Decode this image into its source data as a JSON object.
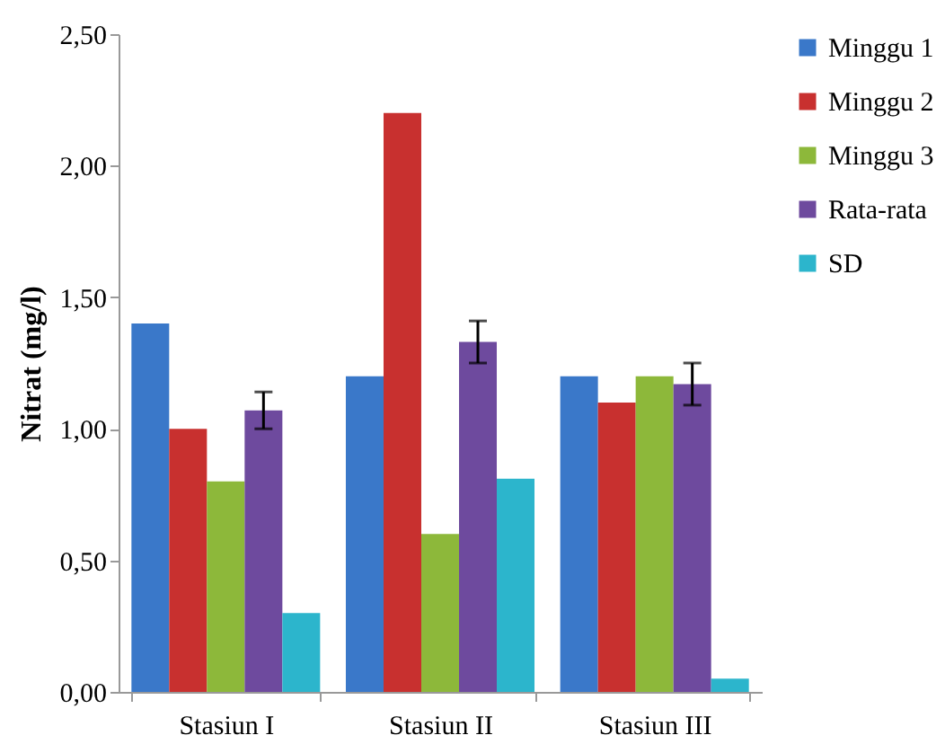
{
  "chart_data": {
    "type": "bar",
    "ylabel": "Nitrat (mg/l)",
    "categories": [
      "Stasiun I",
      "Stasiun II",
      "Stasiun III"
    ],
    "series": [
      {
        "name": "Minggu 1",
        "color": "#3a78c9",
        "values": [
          1.4,
          1.2,
          1.2
        ]
      },
      {
        "name": "Minggu 2",
        "color": "#c8302f",
        "values": [
          1.0,
          2.2,
          1.1
        ]
      },
      {
        "name": "Minggu 3",
        "color": "#8db83a",
        "values": [
          0.8,
          0.6,
          1.2
        ]
      },
      {
        "name": "Rata-rata",
        "color": "#6e4a9e",
        "values": [
          1.07,
          1.33,
          1.17
        ],
        "errors": [
          0.07,
          0.08,
          0.08
        ]
      },
      {
        "name": "SD",
        "color": "#2cb5cc",
        "values": [
          0.3,
          0.81,
          0.05
        ]
      }
    ],
    "ylim": [
      0,
      2.5
    ],
    "yticks": [
      {
        "value": 0,
        "label": "0,00"
      },
      {
        "value": 0.5,
        "label": "0,50"
      },
      {
        "value": 1,
        "label": "1,00"
      },
      {
        "value": 1.5,
        "label": "1,50"
      },
      {
        "value": 2,
        "label": "2,00"
      },
      {
        "value": 2.5,
        "label": "2,50"
      }
    ],
    "grid": false,
    "legend": "right"
  }
}
